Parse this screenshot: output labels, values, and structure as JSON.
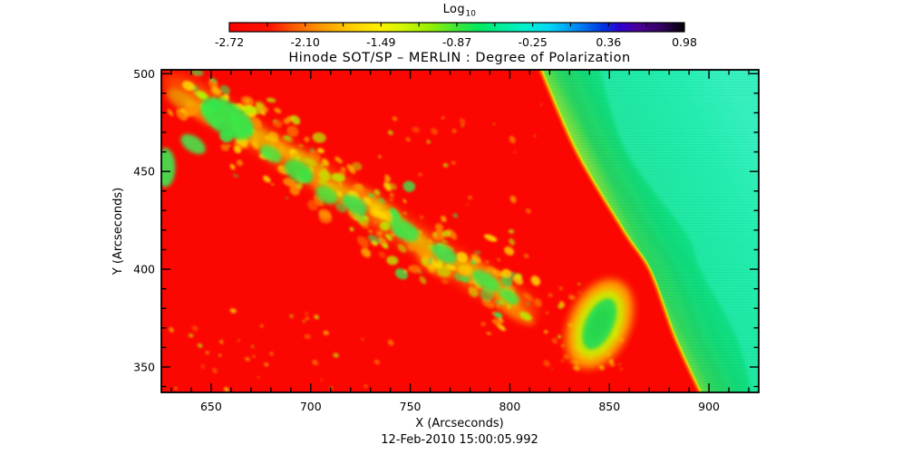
{
  "figure": {
    "background": "#ffffff"
  },
  "colorbar": {
    "title_main": "Log",
    "title_sub": "10",
    "tick_labels": [
      "-2.72",
      "-2.10",
      "-1.49",
      "-0.87",
      "-0.25",
      "0.36",
      "0.98"
    ],
    "gradient": [
      [
        0.0,
        "#ff0000"
      ],
      [
        0.09,
        "#ff1400"
      ],
      [
        0.14,
        "#ff5a00"
      ],
      [
        0.2,
        "#ff9600"
      ],
      [
        0.27,
        "#ffd000"
      ],
      [
        0.33,
        "#fdf000"
      ],
      [
        0.38,
        "#d2f600"
      ],
      [
        0.44,
        "#96ef00"
      ],
      [
        0.5,
        "#3fe73a"
      ],
      [
        0.55,
        "#00e960"
      ],
      [
        0.6,
        "#00ee9c"
      ],
      [
        0.65,
        "#00f0cf"
      ],
      [
        0.7,
        "#00daf2"
      ],
      [
        0.74,
        "#00a9f4"
      ],
      [
        0.78,
        "#0070ee"
      ],
      [
        0.82,
        "#0036e2"
      ],
      [
        0.86,
        "#2e00cf"
      ],
      [
        0.9,
        "#4c0096"
      ],
      [
        0.95,
        "#320060"
      ],
      [
        1.0,
        "#000000"
      ]
    ]
  },
  "chart_data": {
    "type": "heatmap",
    "title": "Hinode SOT/SP – MERLIN : Degree of Polarization",
    "xlabel": "X (Arcseconds)",
    "ylabel": "Y (Arcseconds)",
    "date_label": "12-Feb-2010 15:00:05.992",
    "xlim": [
      625,
      925
    ],
    "ylim": [
      337,
      502
    ],
    "x_major_ticks": [
      650,
      700,
      750,
      800,
      850,
      900
    ],
    "y_major_ticks": [
      350,
      400,
      450,
      500
    ],
    "minor_tick_step": 10,
    "grid": false,
    "legend": "none",
    "colorbar_scale": {
      "label": "Log10",
      "range": [
        -2.72,
        0.98
      ],
      "ticks": [
        -2.72,
        -2.1,
        -1.49,
        -0.87,
        -0.25,
        0.36,
        0.98
      ]
    },
    "approx_value_grid": {
      "note": "coarse log10(degree of polarization) estimates sampled on a 12x8 grid, read from colors",
      "x_centers": [
        637,
        662,
        687,
        712,
        737,
        762,
        787,
        812,
        837,
        862,
        887,
        912
      ],
      "y_centers": [
        494,
        473,
        452,
        432,
        411,
        391,
        370,
        347
      ],
      "values": [
        [
          -1.9,
          -1.5,
          -2.3,
          -2.7,
          -2.7,
          -2.7,
          -2.7,
          -2.7,
          -1.3,
          -1.0,
          -0.9,
          -0.8
        ],
        [
          -1.3,
          -1.2,
          -1.8,
          -2.4,
          -2.7,
          -2.7,
          -2.7,
          -2.7,
          -2.5,
          -1.2,
          -0.9,
          -0.8
        ],
        [
          -2.0,
          -1.3,
          -1.4,
          -1.9,
          -2.5,
          -2.7,
          -2.7,
          -2.7,
          -2.7,
          -1.4,
          -0.9,
          -0.8
        ],
        [
          -2.6,
          -2.2,
          -1.5,
          -1.4,
          -2.0,
          -2.6,
          -2.7,
          -2.7,
          -2.7,
          -2.0,
          -0.9,
          -0.8
        ],
        [
          -2.7,
          -2.5,
          -2.0,
          -1.4,
          -1.5,
          -2.2,
          -2.7,
          -2.7,
          -2.7,
          -2.7,
          -1.0,
          -0.8
        ],
        [
          -2.7,
          -2.7,
          -2.4,
          -1.8,
          -1.5,
          -1.9,
          -2.5,
          -2.7,
          -2.7,
          -2.7,
          -1.2,
          -0.8
        ],
        [
          -2.7,
          -2.7,
          -2.6,
          -2.3,
          -2.0,
          -2.2,
          -2.6,
          -2.7,
          -1.4,
          -2.3,
          -1.3,
          -0.7
        ],
        [
          -2.7,
          -2.7,
          -2.7,
          -2.5,
          -2.3,
          -2.4,
          -2.7,
          -2.7,
          -2.2,
          -2.7,
          -2.0,
          -0.7
        ]
      ]
    },
    "features": {
      "solar_disk": {
        "color": "#fb0600",
        "log10_value": -2.7
      },
      "limb_polyline": [
        [
          816,
          502
        ],
        [
          834,
          460
        ],
        [
          858,
          419
        ],
        [
          871,
          399
        ],
        [
          883,
          366
        ],
        [
          896,
          337
        ]
      ],
      "off_limb": {
        "gradient": [
          "#d8ee26",
          "#7fe23c",
          "#2fd75e",
          "#12dd7c",
          "#0ae590",
          "#16eda6",
          "#3cf2c2"
        ],
        "log10_value": -1.0
      },
      "active_region_band": {
        "from": [
          633,
          494
        ],
        "to": [
          810,
          378
        ],
        "sigma": 16,
        "count": 280,
        "seed": 11,
        "palette": [
          "#ffd800",
          "#ff9100",
          "#b9ee00",
          "#3ee84a"
        ]
      },
      "patches": [
        {
          "x": 658,
          "y": 477,
          "rx": 15,
          "ry": 8,
          "rot": 33,
          "color": "#2ce84c"
        },
        {
          "x": 627,
          "y": 452,
          "rx": 5,
          "ry": 10,
          "rot": 0,
          "color": "#3ae852"
        },
        {
          "x": 641,
          "y": 464,
          "rx": 7,
          "ry": 4,
          "rot": 33,
          "color": "#49e24a"
        },
        {
          "x": 680,
          "y": 459,
          "rx": 6,
          "ry": 3.5,
          "rot": 33,
          "color": "#55e23e"
        },
        {
          "x": 694,
          "y": 450,
          "rx": 8,
          "ry": 5,
          "rot": 33,
          "color": "#40e040"
        },
        {
          "x": 708,
          "y": 438,
          "rx": 6,
          "ry": 4,
          "rot": 33,
          "color": "#52e23a"
        },
        {
          "x": 722,
          "y": 433,
          "rx": 7,
          "ry": 4,
          "rot": 33,
          "color": "#3fe04d"
        },
        {
          "x": 747,
          "y": 420,
          "rx": 8,
          "ry": 4.5,
          "rot": 33,
          "color": "#44e148"
        },
        {
          "x": 767,
          "y": 408,
          "rx": 7,
          "ry": 4,
          "rot": 33,
          "color": "#3de04f"
        },
        {
          "x": 788,
          "y": 394,
          "rx": 8,
          "ry": 4,
          "rot": 33,
          "color": "#46e145"
        },
        {
          "x": 800,
          "y": 386,
          "rx": 5,
          "ry": 3,
          "rot": 33,
          "color": "#52e03e"
        }
      ],
      "scatters": [
        {
          "x0": 628,
          "x1": 749,
          "y0": 338,
          "y1": 380,
          "count": 36,
          "seed": 21,
          "maxr": 3
        },
        {
          "x0": 717,
          "x1": 817,
          "y0": 399,
          "y1": 496,
          "count": 32,
          "seed": 33,
          "maxr": 3.5
        },
        {
          "x0": 817,
          "x1": 857,
          "y0": 348,
          "y1": 394,
          "count": 48,
          "seed": 55,
          "maxr": 3
        }
      ],
      "pore": {
        "x": 845,
        "y": 372,
        "rot": 25,
        "halo_rx": 15,
        "halo_ry": 24,
        "core_rx": 7,
        "core_ry": 14,
        "halo_color": "#ffdd00",
        "ring_color": "#c8ee00",
        "core_color": "#2fdc50"
      }
    }
  }
}
